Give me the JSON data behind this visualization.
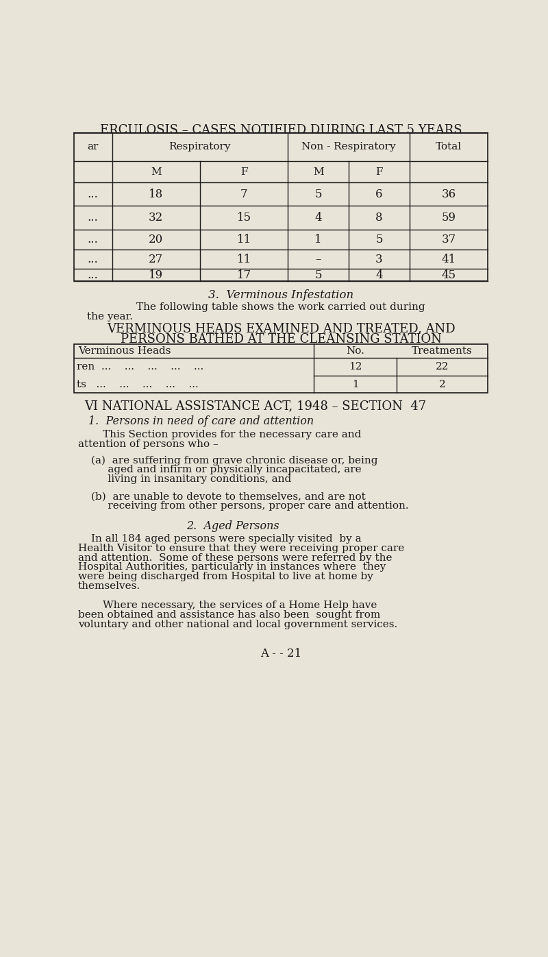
{
  "bg_color": "#e8e4d8",
  "text_color": "#1a1a1a",
  "title1": "ERCULOSIS – CASES NOTIFIED DURING LAST 5 YEARS",
  "table1_rows": [
    [
      "...",
      "18",
      "7",
      "5",
      "6",
      "36"
    ],
    [
      "...",
      "32",
      "15",
      "4",
      "8",
      "59"
    ],
    [
      "...",
      "20",
      "11",
      "1",
      "5",
      "37"
    ],
    [
      "...",
      "27",
      "11",
      "–",
      "3",
      "41"
    ],
    [
      "...",
      "19",
      "17",
      "5",
      "4",
      "45"
    ]
  ],
  "section3_title": "3.  Verminous Infestation",
  "section3_para1": "The following table shows the work carried out during",
  "section3_para2": "the year.",
  "table2_title1": "VERMINOUS HEADS EXAMINED AND TREATED, AND",
  "table2_title2": "PERSONS BATHED AT THE CLEANSING STATION",
  "table2_col1": "Verminous Heads",
  "table2_col2": "No.",
  "table2_col3": "Treatments",
  "table2_row1_label": "ren  ...    ...    ...    ...    ...",
  "table2_row1_no": "12",
  "table2_row1_treat": "22",
  "table2_row2_label": "ts   ...    ...    ...    ...    ...",
  "table2_row2_no": "1",
  "table2_row2_treat": "2",
  "section6_title": "VI NATIONAL ASSISTANCE ACT, 1948 – SECTION  47",
  "section6_sub1": "1.  Persons in need of care and attention",
  "section6_para1a": "This Section provides for the necessary care and",
  "section6_para1b": "attention of persons who –",
  "section6_a1": "(a)  are suffering from grave chronic disease or, being",
  "section6_a2": "     aged and infirm or physically incapacitated, are",
  "section6_a3": "     living in insanitary conditions, and",
  "section6_b1": "(b)  are unable to devote to themselves, and are not",
  "section6_b2": "     receiving from other persons, proper care and attention.",
  "section6_sub2": "2.  Aged Persons",
  "section6_p2_1": "In all 184 aged persons were specially visited  by a",
  "section6_p2_2": "Health Visitor to ensure that they were receiving proper care",
  "section6_p2_3": "and attention.  Some of these persons were referred by the",
  "section6_p2_4": "Hospital Authorities, particularly in instances where  they",
  "section6_p2_5": "were being discharged from Hospital to live at home by",
  "section6_p2_6": "themselves.",
  "section6_p3_1": "Where necessary, the services of a Home Help have",
  "section6_p3_2": "been obtained and assistance has also been  sought from",
  "section6_p3_3": "voluntary and other national and local government services.",
  "footer": "A - - 21"
}
